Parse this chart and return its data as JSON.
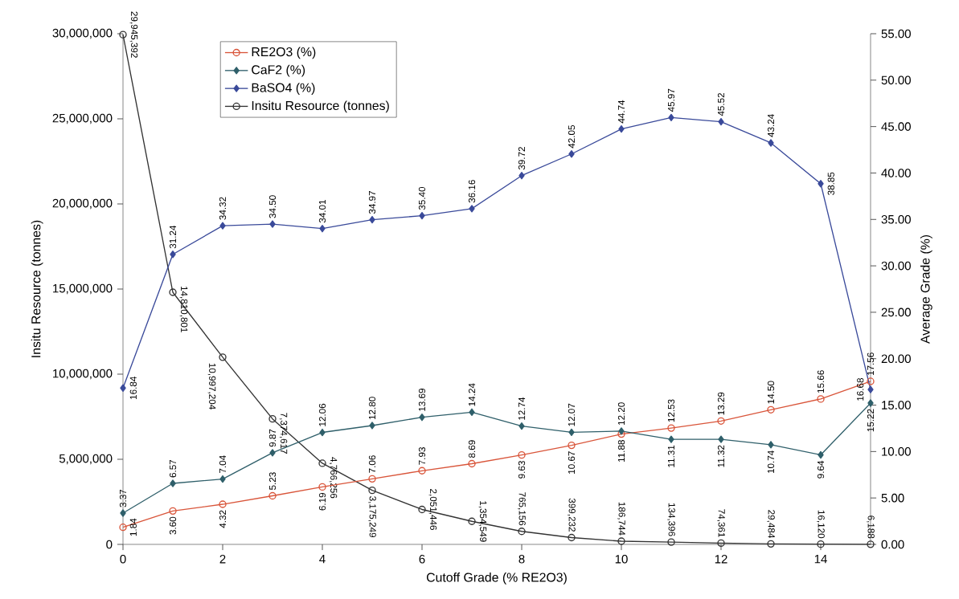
{
  "chart_data": {
    "type": "line",
    "xlabel": "Cutoff Grade (% RE2O3)",
    "ylabel": "Insitu Resource (tonnes)",
    "y2label": "Average Grade (%)",
    "x": [
      0,
      1,
      2,
      3,
      4,
      5,
      6,
      7,
      8,
      9,
      10,
      11,
      12,
      13,
      14,
      15
    ],
    "xlim": [
      0,
      15
    ],
    "xticks": [
      0,
      2,
      4,
      6,
      8,
      10,
      12,
      14
    ],
    "ylim": [
      0,
      30000000
    ],
    "yticks": [
      0,
      {
        "value": 5000000,
        "label": "5,000,000"
      },
      {
        "value": 10000000,
        "label": "10,000,000"
      },
      {
        "value": 15000000,
        "label": "15,000,000"
      },
      {
        "value": 20000000,
        "label": "20,000,000"
      },
      {
        "value": 25000000,
        "label": "25,000,000"
      },
      {
        "value": 30000000,
        "label": "30,000,000"
      }
    ],
    "y2lim": [
      0,
      55
    ],
    "y2ticks": [
      {
        "value": 0,
        "label": "0.00"
      },
      {
        "value": 5,
        "label": "5.00"
      },
      {
        "value": 10,
        "label": "10.00"
      },
      {
        "value": 15,
        "label": "15.00"
      },
      {
        "value": 20,
        "label": "20.00"
      },
      {
        "value": 25,
        "label": "25.00"
      },
      {
        "value": 30,
        "label": "30.00"
      },
      {
        "value": 35,
        "label": "35.00"
      },
      {
        "value": 40,
        "label": "40.00"
      },
      {
        "value": 45,
        "label": "45.00"
      },
      {
        "value": 50,
        "label": "50.00"
      },
      {
        "value": 55,
        "label": "55.00"
      }
    ],
    "legend": "top left",
    "grid": false,
    "line_style": "solid",
    "series": [
      {
        "name": "RE2O3 (%)",
        "color": "#d9553a",
        "marker": "circle",
        "axis": "y2",
        "values": [
          1.84,
          3.6,
          4.32,
          5.23,
          6.19,
          7.06,
          7.93,
          8.69,
          9.63,
          10.67,
          11.88,
          12.53,
          13.29,
          14.5,
          15.66,
          17.56
        ],
        "value_labels": [
          "1.84",
          "3.60",
          "4.32",
          "5.23",
          "6.19",
          "7.06",
          "7.93",
          "8.69",
          "9.63",
          "10.67",
          "11.88",
          "12.53",
          "13.29",
          "14.50",
          "15.66",
          "17.56"
        ]
      },
      {
        "name": "CaF2 (%)",
        "color": "#2f5f6a",
        "marker": "diamond",
        "axis": "y2",
        "values": [
          3.37,
          6.57,
          7.04,
          9.87,
          12.06,
          12.8,
          13.69,
          14.24,
          12.74,
          12.07,
          12.2,
          11.31,
          11.32,
          10.74,
          9.64,
          15.22
        ],
        "value_labels": [
          "3.37",
          "6.57",
          "7.04",
          "9.87",
          "12.06",
          "12.80",
          "13.69",
          "14.24",
          "12.74",
          "12.07",
          "12.20",
          "11.31",
          "11.32",
          "10.74",
          "9.64",
          "15.22"
        ]
      },
      {
        "name": "BaSO4 (%)",
        "color": "#3a4a9a",
        "marker": "diamond",
        "axis": "y2",
        "values": [
          16.84,
          31.24,
          34.32,
          34.5,
          34.01,
          34.97,
          35.4,
          36.16,
          39.72,
          42.05,
          44.74,
          45.97,
          45.52,
          43.24,
          38.85,
          16.68
        ],
        "value_labels": [
          "16.84",
          "31.24",
          "34.32",
          "34.50",
          "34.01",
          "34.97",
          "35.40",
          "36.16",
          "39.72",
          "42.05",
          "44.74",
          "45.97",
          "45.52",
          "43.24",
          "38.85",
          "16.68"
        ]
      },
      {
        "name": "Insitu Resource (tonnes)",
        "color": "#333333",
        "marker": "circle",
        "axis": "y",
        "values": [
          29945392,
          14810801,
          10997204,
          7374617,
          4766256,
          3175249,
          2051446,
          1354549,
          765156,
          399232,
          186744,
          134396,
          74361,
          29484,
          16120,
          6188
        ],
        "value_labels": [
          "29,945,392",
          "14,810,801",
          "10,997,204",
          "7,374,617",
          "4,766,256",
          "3,175,249",
          "2,051,446",
          "1,354,549",
          "765,156",
          "399,232",
          "186,744",
          "134,396",
          "74,361",
          "29,484",
          "16,120",
          "6,188"
        ]
      }
    ]
  }
}
